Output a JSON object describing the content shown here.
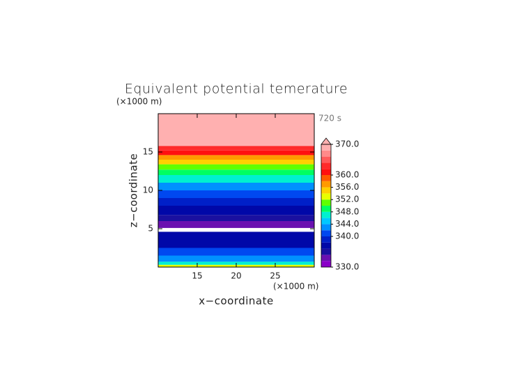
{
  "chart_data": {
    "type": "contourf",
    "title": "Equivalent potential temerature",
    "xlabel": "x−coordinate",
    "ylabel": "z−coordinate",
    "x_unit_label": "(×1000 m)",
    "y_unit_label": "(×1000 m)",
    "time_label": "720 s",
    "xlim": [
      10,
      30
    ],
    "ylim": [
      0,
      20
    ],
    "xticks": [
      15,
      20,
      25
    ],
    "yticks": [
      5,
      10,
      15
    ],
    "z_edges": [
      0,
      0.3,
      0.7,
      1.5,
      2.5,
      4.6,
      5.1,
      6,
      6.8,
      8,
      9,
      10,
      11,
      12,
      12.7,
      13.4,
      14,
      14.6,
      15.2,
      15.8,
      20
    ],
    "values": [
      352,
      346,
      342,
      340,
      337,
      null,
      333,
      335,
      337,
      339,
      341,
      343,
      347,
      349,
      351,
      355,
      357,
      361,
      363,
      369
    ],
    "levels": [
      330,
      332,
      334,
      336,
      338,
      340,
      342,
      344,
      346,
      348,
      350,
      352,
      354,
      356,
      358,
      360,
      362,
      364,
      366,
      368,
      370
    ],
    "level_colors": [
      "#8a00c8",
      "#6a10b0",
      "#1a10a0",
      "#0008a8",
      "#0020c8",
      "#0048f0",
      "#0090ff",
      "#00c8ff",
      "#00f0d0",
      "#00ff60",
      "#60ff00",
      "#e8ff00",
      "#ffd000",
      "#ff9a00",
      "#ff5a00",
      "#ff1010",
      "#ff2a2a",
      "#ff5a5a",
      "#ff8a8a",
      "#ffb0b0",
      "#ffb0b0"
    ],
    "colorbar_ticks": [
      {
        "value": 330,
        "label": "330.0"
      },
      {
        "value": 340,
        "label": "340.0"
      },
      {
        "value": 344,
        "label": "344.0"
      },
      {
        "value": 348,
        "label": "348.0"
      },
      {
        "value": 352,
        "label": "352.0"
      },
      {
        "value": 356,
        "label": "356.0"
      },
      {
        "value": 360,
        "label": "360.0"
      },
      {
        "value": 370,
        "label": "370.0"
      }
    ]
  }
}
